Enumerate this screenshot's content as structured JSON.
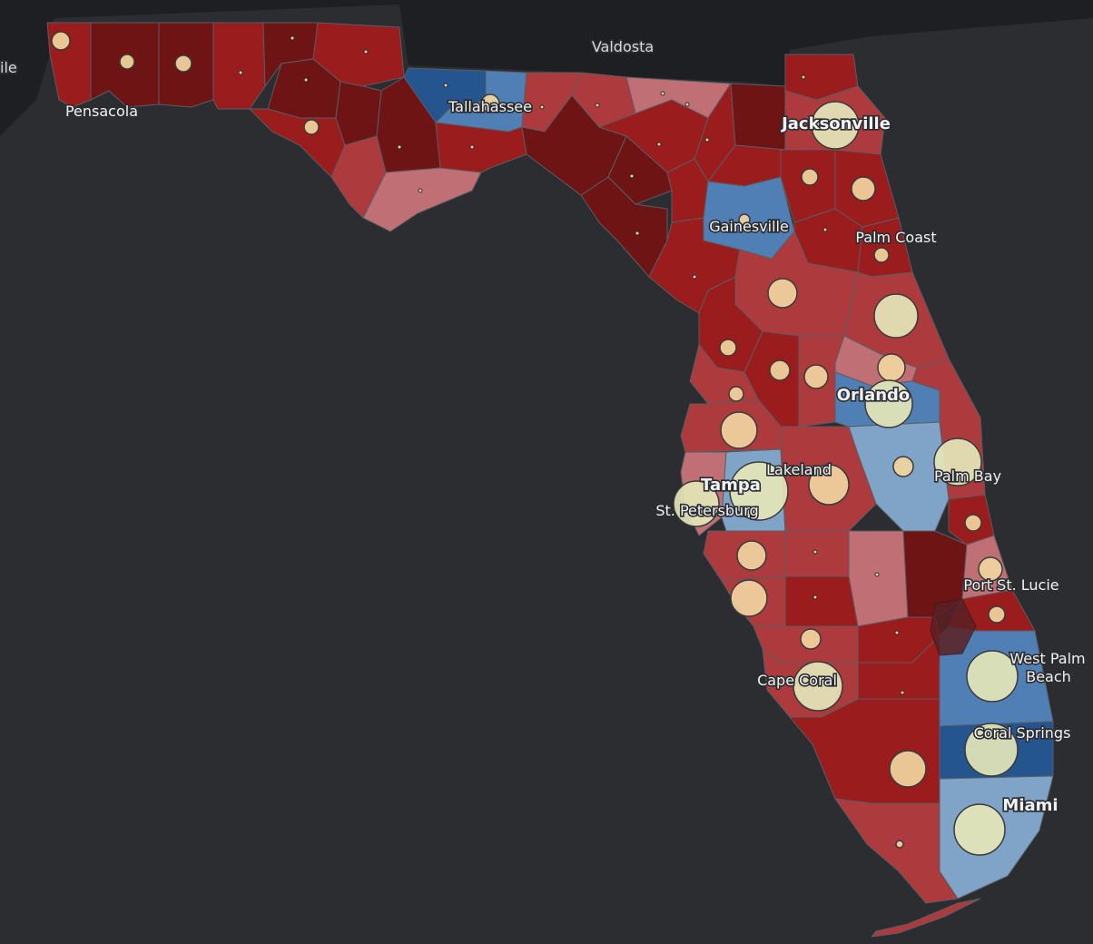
{
  "colors": {
    "background": "#2b2d31",
    "land_outside": "#1e1f22",
    "rep_strong": "#6e1414",
    "rep": "#9a1c1c",
    "rep_lean": "#ad3a3d",
    "rep_tilt": "#c07074",
    "dem_tilt": "#7fa4c8",
    "dem": "#4f7fb4",
    "dem_strong": "#24558e",
    "bubble_fill_small": "#f1d5a0",
    "bubble_fill_large": "#e4e6b9"
  },
  "labels": {
    "valdosta": "Valdosta",
    "mobile_partial": "ile",
    "pensacola": "Pensacola",
    "tallahassee": "Tallahassee",
    "jacksonville": "Jacksonville",
    "gainesville": "Gainesville",
    "palm_coast": "Palm Coast",
    "orlando": "Orlando",
    "lakeland": "Lakeland",
    "tampa": "Tampa",
    "st_petersburg": "St. Petersburg",
    "palm_bay": "Palm Bay",
    "port_st_lucie": "Port St. Lucie",
    "west_palm_1": "West Palm",
    "west_palm_2": "Beach",
    "coral_springs": "Coral Springs",
    "miami": "Miami",
    "cape_coral": "Cape Coral"
  }
}
